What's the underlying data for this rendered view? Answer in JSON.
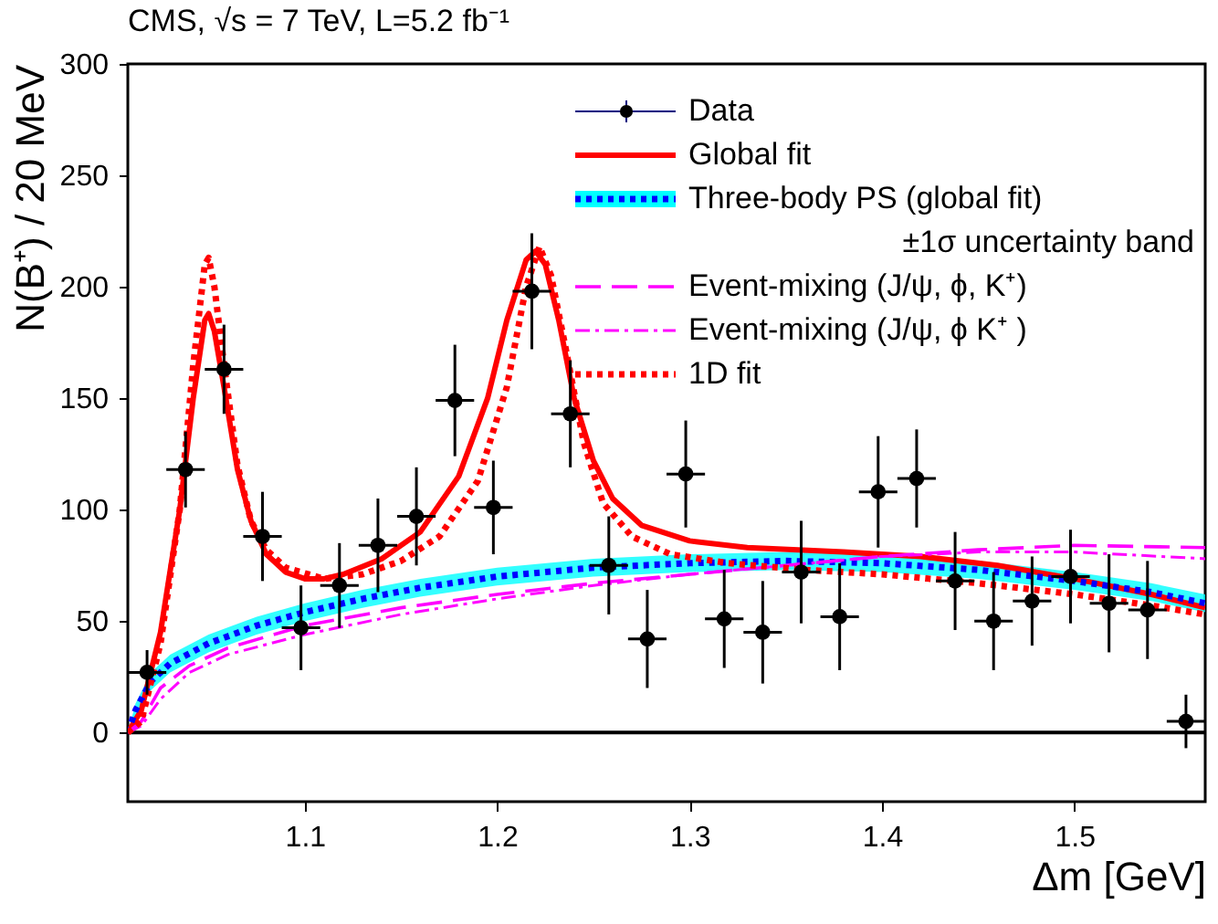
{
  "chart_data": {
    "type": "scatter",
    "title": "CMS, √s = 7 TeV, L=5.2 fb⁻¹",
    "xlabel": "Δm [GeV]",
    "ylabel": "N(B⁺) / 20 MeV",
    "xlim": [
      1.008,
      1.568
    ],
    "ylim": [
      -31,
      300
    ],
    "xticks": [
      1.1,
      1.2,
      1.3,
      1.4,
      1.5
    ],
    "yticks": [
      0,
      50,
      100,
      150,
      200,
      250,
      300
    ],
    "grid": false,
    "legend": "top right",
    "ref_lines": [
      {
        "axis": "y",
        "value": 0,
        "color": "#000000",
        "line_style": "solid"
      }
    ],
    "series": [
      {
        "name": "Data",
        "type": "scatter",
        "color": "#000000",
        "marker": "circle",
        "x": [
          1.018,
          1.038,
          1.058,
          1.078,
          1.098,
          1.118,
          1.138,
          1.158,
          1.178,
          1.198,
          1.218,
          1.238,
          1.258,
          1.278,
          1.298,
          1.318,
          1.338,
          1.358,
          1.378,
          1.398,
          1.418,
          1.438,
          1.458,
          1.478,
          1.498,
          1.518,
          1.538,
          1.558
        ],
        "values": [
          27,
          118,
          163,
          88,
          47,
          66,
          84,
          97,
          149,
          101,
          198,
          143,
          75,
          42,
          116,
          51,
          45,
          72,
          52,
          108,
          114,
          68,
          50,
          59,
          70,
          58,
          55,
          5
        ],
        "errors": [
          10,
          17,
          20,
          20,
          19,
          19,
          21,
          22,
          25,
          21,
          26,
          24,
          22,
          22,
          24,
          22,
          23,
          23,
          24,
          25,
          22,
          22,
          22,
          20,
          21,
          22,
          22,
          12
        ],
        "xerrors": [
          0.01,
          0.01,
          0.01,
          0.01,
          0.01,
          0.01,
          0.01,
          0.01,
          0.01,
          0.01,
          0.01,
          0.01,
          0.01,
          0.01,
          0.01,
          0.01,
          0.01,
          0.01,
          0.01,
          0.01,
          0.01,
          0.01,
          0.01,
          0.01,
          0.01,
          0.01,
          0.01,
          0.01
        ]
      },
      {
        "name": "Global fit",
        "type": "line",
        "color": "#ff0000",
        "line_style": "solid",
        "x": [
          1.008,
          1.015,
          1.025,
          1.035,
          1.042,
          1.048,
          1.05,
          1.053,
          1.058,
          1.065,
          1.072,
          1.08,
          1.09,
          1.1,
          1.11,
          1.12,
          1.14,
          1.16,
          1.18,
          1.195,
          1.205,
          1.215,
          1.22,
          1.225,
          1.232,
          1.24,
          1.25,
          1.26,
          1.275,
          1.3,
          1.33,
          1.38,
          1.42,
          1.46,
          1.5,
          1.54,
          1.568
        ],
        "values": [
          0,
          10,
          45,
          100,
          150,
          185,
          188,
          180,
          155,
          118,
          95,
          80,
          72,
          69,
          69,
          71,
          78,
          90,
          115,
          150,
          185,
          212,
          216,
          210,
          185,
          150,
          122,
          105,
          93,
          86,
          83,
          81,
          79,
          75,
          69,
          62,
          56
        ]
      },
      {
        "name": "Three-body PS (global fit)\n±1σ  uncertainty band",
        "type": "line",
        "color": "#0000ff",
        "line_style": "dotted",
        "x": [
          1.008,
          1.012,
          1.02,
          1.03,
          1.05,
          1.075,
          1.1,
          1.13,
          1.16,
          1.2,
          1.25,
          1.3,
          1.35,
          1.4,
          1.45,
          1.5,
          1.54,
          1.568
        ],
        "values": [
          0,
          10,
          23,
          31,
          40,
          48,
          54,
          60,
          65,
          70,
          74,
          76,
          77,
          76,
          73,
          68,
          63,
          58
        ],
        "lower": [
          0,
          7,
          19,
          27,
          36,
          44,
          50,
          56,
          61,
          66,
          70,
          72,
          73,
          72,
          69,
          64,
          59,
          54
        ],
        "upper": [
          0,
          13,
          27,
          35,
          44,
          52,
          58,
          64,
          69,
          74,
          78,
          80,
          81,
          80,
          77,
          72,
          67,
          62
        ]
      },
      {
        "name": "Event-mixing (J/ψ, ϕ, K⁺)",
        "type": "line",
        "color": "#ff00ff",
        "line_style": "dashed",
        "x": [
          1.008,
          1.015,
          1.025,
          1.04,
          1.06,
          1.1,
          1.15,
          1.2,
          1.25,
          1.3,
          1.35,
          1.4,
          1.45,
          1.5,
          1.568
        ],
        "values": [
          0,
          5,
          20,
          30,
          38,
          48,
          56,
          62,
          67,
          71,
          75,
          79,
          82,
          84,
          83
        ]
      },
      {
        "name": "Event-mixing (J/ψ, ϕ K⁺ )",
        "type": "line",
        "color": "#ff00ff",
        "line_style": "dashdot",
        "x": [
          1.008,
          1.015,
          1.025,
          1.04,
          1.06,
          1.1,
          1.15,
          1.2,
          1.25,
          1.3,
          1.35,
          1.4,
          1.45,
          1.5,
          1.568
        ],
        "values": [
          0,
          3,
          15,
          27,
          35,
          44,
          53,
          60,
          66,
          71,
          75,
          79,
          81,
          81,
          78
        ]
      },
      {
        "name": "1D fit",
        "type": "line",
        "color": "#ff0000",
        "line_style": "dotted",
        "x": [
          1.008,
          1.015,
          1.025,
          1.035,
          1.042,
          1.048,
          1.05,
          1.053,
          1.058,
          1.065,
          1.072,
          1.08,
          1.09,
          1.11,
          1.13,
          1.15,
          1.17,
          1.19,
          1.205,
          1.215,
          1.222,
          1.228,
          1.235,
          1.245,
          1.255,
          1.27,
          1.29,
          1.32,
          1.36,
          1.4,
          1.45,
          1.5,
          1.54,
          1.568
        ],
        "values": [
          0,
          5,
          40,
          100,
          165,
          210,
          213,
          200,
          165,
          120,
          95,
          82,
          74,
          69,
          71,
          77,
          88,
          113,
          155,
          200,
          218,
          205,
          175,
          130,
          103,
          88,
          80,
          76,
          73,
          71,
          67,
          62,
          57,
          53
        ]
      }
    ]
  }
}
